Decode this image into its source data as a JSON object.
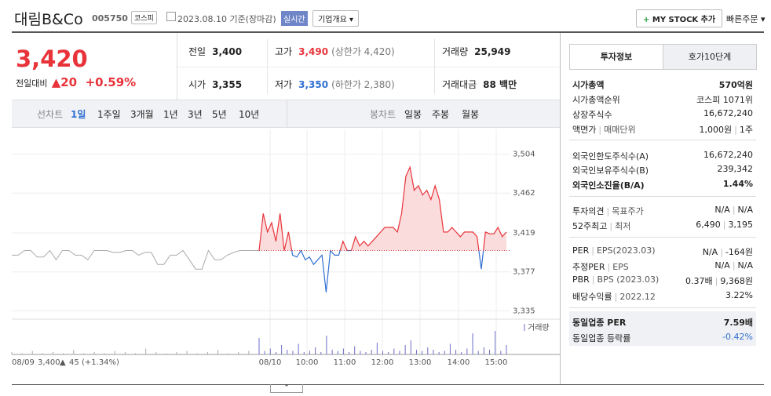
{
  "header": {
    "name": "대림B&Co",
    "code": "005750",
    "market": "코스피",
    "date": "2023.08.10 기준(장마감)",
    "realtime": "실시간",
    "overview": "기업개요",
    "mystock": "MY STOCK 추가",
    "quick_order": "빠른주문"
  },
  "quote": {
    "price": "3,420",
    "change_label": "전일대비",
    "change": "20",
    "change_pct": "+0.59%",
    "cells": [
      {
        "label": "전일",
        "value": "3,400"
      },
      {
        "label": "고가",
        "value": "3,490",
        "note": "(상한가 4,420)"
      },
      {
        "label": "거래량",
        "value": "25,949"
      },
      {
        "label": "시가",
        "value": "3,355"
      },
      {
        "label": "저가",
        "value": "3,350",
        "note": "(하한가 2,380)"
      },
      {
        "label": "거래대금",
        "value": "88 백만"
      }
    ]
  },
  "tabs": {
    "line_label": "선차트",
    "line_items": [
      "1일",
      "1주일",
      "3개월",
      "1년",
      "3년",
      "5년",
      "10년"
    ],
    "candle_label": "봉차트",
    "candle_items": [
      "일봉",
      "주봉",
      "월봉"
    ]
  },
  "chart_data": {
    "type": "line",
    "ylim": [
      3326,
      3518
    ],
    "yticks": [
      {
        "value": 3504,
        "label": "3,504"
      },
      {
        "value": 3462,
        "label": "3,462"
      },
      {
        "value": 3419,
        "label": "3,419"
      },
      {
        "value": 3377,
        "label": "3,377"
      },
      {
        "value": 3335,
        "label": "3,335"
      }
    ],
    "baseline": 3400,
    "series": [
      {
        "color": "#aaaaaa",
        "values": [
          3395,
          3395,
          3400,
          3400,
          3393,
          3393,
          3400,
          3390,
          3400,
          3400,
          3395,
          3395,
          3390,
          3400,
          3400,
          3400,
          3398,
          3398,
          3400,
          3400,
          3395,
          3398,
          3398,
          3385,
          3385,
          3395,
          3395,
          3400,
          3390,
          3380,
          3380,
          3400,
          3390,
          3390,
          3395,
          3398,
          3400,
          3400,
          3400,
          3400
        ]
      },
      {
        "color": "#e8333a",
        "color_down": "#2f6fd1",
        "fill": "#fbdcdd",
        "values": [
          3400,
          3440,
          3420,
          3430,
          3410,
          3440,
          3400,
          3420,
          3395,
          3393,
          3400,
          3390,
          3393,
          3385,
          3390,
          3395,
          3355,
          3400,
          3395,
          3395,
          3410,
          3400,
          3400,
          3415,
          3405,
          3410,
          3405,
          3410,
          3415,
          3420,
          3425,
          3425,
          3425,
          3420,
          3440,
          3480,
          3490,
          3465,
          3470,
          3460,
          3465,
          3455,
          3470,
          3455,
          3420,
          3420,
          3425,
          3420,
          3415,
          3420,
          3420,
          3420,
          3415,
          3380,
          3420,
          3418,
          3418,
          3425,
          3415,
          3420
        ]
      }
    ],
    "volume_label": "거래량",
    "volume_color": "#6e6ec8",
    "volume": [
      [
        2,
        1,
        3,
        1,
        2,
        1,
        4,
        1,
        2,
        1,
        3,
        2,
        1,
        5,
        2,
        1,
        2,
        3,
        1,
        2,
        4,
        1,
        2,
        3,
        2
      ],
      [
        14,
        3,
        5,
        2,
        8,
        4,
        3,
        9,
        2,
        3,
        6,
        2,
        16,
        4,
        3,
        5,
        2,
        7,
        3,
        2,
        4,
        10,
        3,
        2,
        5,
        3,
        8,
        12,
        4,
        3,
        6,
        4,
        2,
        3,
        9,
        4,
        2,
        5,
        18,
        3,
        6,
        4,
        20,
        3,
        8
      ]
    ],
    "time_labels": [
      "08/09",
      "08/10",
      "10:00",
      "11:00",
      "12:00",
      "13:00",
      "14:00",
      "15:00"
    ],
    "prev_summary": {
      "close": "3,400",
      "change": "45",
      "pct": "(+1.34%)"
    }
  },
  "side": {
    "tabs": [
      "투자정보",
      "호가10단계"
    ],
    "groups": [
      [
        {
          "label": [
            "시가총액"
          ],
          "value": [
            "570억원"
          ],
          "bold": true
        },
        {
          "label": [
            "시가총액순위"
          ],
          "value": [
            "코스피 1071위"
          ]
        },
        {
          "label": [
            "상장주식수"
          ],
          "value": [
            "16,672,240"
          ]
        },
        {
          "label": [
            "액면가",
            "매매단위"
          ],
          "value": [
            "1,000원",
            "1주"
          ]
        }
      ],
      [
        {
          "label": [
            "외국인한도주식수(A)"
          ],
          "value": [
            "16,672,240"
          ]
        },
        {
          "label": [
            "외국인보유주식수(B)"
          ],
          "value": [
            "239,342"
          ]
        },
        {
          "label": [
            "외국인소진율(B/A)"
          ],
          "value": [
            "1.44%"
          ],
          "bold": true
        }
      ],
      [
        {
          "label": [
            "투자의견",
            "목표주가"
          ],
          "value": [
            "N/A",
            "N/A"
          ]
        },
        {
          "label": [
            "52주최고",
            "최저"
          ],
          "value": [
            "6,490",
            "3,195"
          ]
        }
      ],
      [
        {
          "label": [
            "PER",
            "EPS(2023.03)"
          ],
          "value": [
            "N/A",
            "-164원"
          ]
        },
        {
          "label": [
            "추정PER",
            "EPS"
          ],
          "value": [
            "N/A",
            "N/A"
          ]
        },
        {
          "label": [
            "PBR",
            "BPS (2023.03)"
          ],
          "value": [
            "0.37배",
            "9,368원"
          ]
        },
        {
          "label": [
            "배당수익률",
            "2022.12"
          ],
          "value": [
            "3.22%"
          ]
        }
      ],
      [
        {
          "label": [
            "동일업종 PER"
          ],
          "value": [
            "7.59배"
          ],
          "bold": true
        },
        {
          "label": [
            "동일업종 등락률"
          ],
          "value": [
            "-0.42%"
          ]
        }
      ]
    ]
  }
}
